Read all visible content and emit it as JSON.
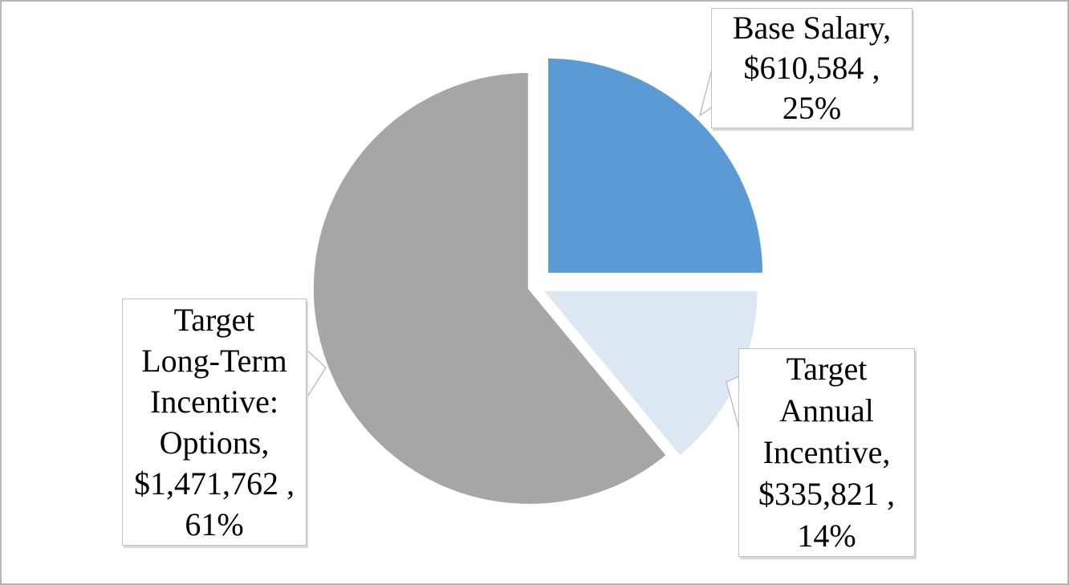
{
  "chart_data": {
    "type": "pie",
    "title": "",
    "categories": [
      "Base Salary",
      "Target Annual Incentive",
      "Target Long-Term Incentive: Options"
    ],
    "values": [
      610584,
      335821,
      1471762
    ],
    "percentages": [
      25,
      14,
      61
    ],
    "value_labels": [
      "$610,584",
      "$335,821",
      "$1,471,762"
    ],
    "percent_labels": [
      "25%",
      "14%",
      "61%"
    ],
    "colors": [
      "#5B9BD5",
      "#DBE7F3",
      "#A6A6A6"
    ],
    "slice_border_color": "#FFFFFF",
    "start_angle_deg": 0,
    "direction": "clockwise",
    "exploded_slice": "Base Salary",
    "legend": "none",
    "label_style": "callout-boxes"
  },
  "callouts": {
    "base_salary": {
      "lines": [
        "Base Salary,",
        "$610,584 ,",
        "25%"
      ]
    },
    "annual_incentive": {
      "lines": [
        "Target",
        "Annual",
        "Incentive,",
        "$335,821 ,",
        "14%"
      ]
    },
    "lti_options": {
      "lines": [
        "Target",
        "Long-Term",
        "Incentive:",
        "Options,",
        "$1,471,762 ,",
        "61%"
      ]
    }
  },
  "style": {
    "slice_blue": "#5B9BD5",
    "slice_light_blue": "#DBE7F3",
    "slice_gray": "#A6A6A6",
    "callout_border": "#C0C0C0",
    "callout_shadow": "#D9D9D9",
    "canvas_border": "#B5B5B5",
    "text_color": "#000000",
    "background": "#FFFFFF"
  }
}
